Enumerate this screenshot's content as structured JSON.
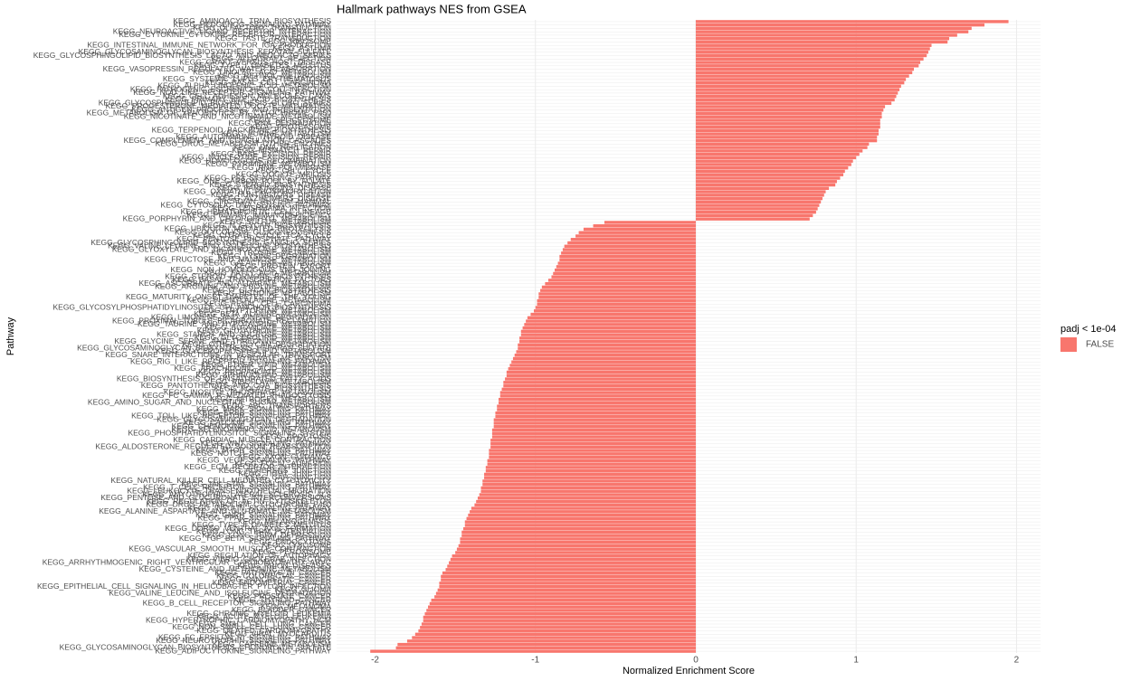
{
  "chart_data": {
    "type": "barh",
    "title": "Hallmark pathways NES from GSEA",
    "x_label": "Normalized Enrichment Score",
    "y_label": "Pathway",
    "legend_title": "padj < 1e-04",
    "legend_position": "right",
    "grid": true,
    "xlim": [
      -2.24,
      2.15
    ],
    "xticks": [
      -2,
      -1,
      0,
      1,
      2
    ],
    "categories": [
      "KEGG_AMINOACYL_TRNA_BIOSYNTHESIS",
      "KEGG_HEDGEHOG_SIGNALING_PATHWAY",
      "KEGG_OLFACTORY_TRANSDUCTION",
      "KEGG_NEUROACTIVE_LIGAND_RECEPTOR_INTERACTION",
      "KEGG_CYTOKINE_CYTOKINE_RECEPTOR_INTERACTION",
      "KEGG_TASTE_TRANSDUCTION",
      "KEGG_RIBOSOME",
      "KEGG_INTESTINAL_IMMUNE_NETWORK_FOR_IGA_PRODUCTION",
      "KEGG_ASTHMA",
      "KEGG_GLYCOSAMINOGLYCAN_BIOSYNTHESIS_KERATAN_SULFATE",
      "KEGG_GLYCOSPHINGOLIPID_BIOSYNTHESIS_LACTO_AND_NEOLACTO_SERIES",
      "KEGG_ALLOGRAFT_REJECTION",
      "KEGG_GRAFT_VERSUS_HOST_DISEASE",
      "KEGG_TYPE_I_DIABETES_MELLITUS",
      "KEGG_VASOPRESSIN_REGULATED_WATER_REABSORPTION",
      "KEGG_LINOLEIC_ACID_METABOLISM",
      "KEGG_RETINOL_METABOLISM",
      "KEGG_SYSTEMIC_LUPUS_ERYTHEMATOSUS",
      "KEGG_BASAL_CELL_CARCINOMA",
      "KEGG_ALPHA_LINOLENIC_ACID_METABOLISM",
      "KEGG_PATHOGENIC_ESCHERICHIA_COLI_INFECTION",
      "KEGG_NOD_LIKE_RECEPTOR_SIGNALING_PATHWAY",
      "KEGG_CELL_ADHESION_MOLECULES_CAMS",
      "KEGG_PRIMARY_BILE_ACID_BIOSYNTHESIS",
      "KEGG_GLYCOSPHINGOLIPID_BIOSYNTHESIS_GLOBO_SERIES",
      "KEGG_PROGESTERONE_MEDIATED_OOCYTE_MATURATION",
      "KEGG_ANTIGEN_PROCESSING_AND_PRESENTATION",
      "KEGG_METABOLISM_OF_XENOBIOTICS_BY_CYTOCHROME_P450",
      "KEGG_NICOTINATE_AND_NICOTINAMIDE_METABOLISM",
      "KEGG_SPLICEOSOME",
      "KEGG_RNA_DEGRADATION",
      "KEGG_PROTEASOME",
      "KEGG_TERPENOID_BACKBONE_BIOSYNTHESIS",
      "KEGG_PURINE_METABOLISM",
      "KEGG_AUTOIMMUNE_THYROID_DISEASE",
      "KEGG_COMPLEMENT_AND_COAGULATION_CASCADES",
      "KEGG_DRUG_METABOLISM_OTHER_ENZYMES",
      "KEGG_DNA_REPLICATION",
      "KEGG_MISMATCH_REPAIR",
      "KEGG_BASE_EXCISION_REPAIR",
      "KEGG_NUCLEOTIDE_EXCISION_REPAIR",
      "KEGG_HOMOLOGOUS_RECOMBINATION",
      "KEGG_PYRIMIDINE_METABOLISM",
      "KEGG_RNA_POLYMERASE",
      "KEGG_CELL_CYCLE",
      "KEGG_OOCYTE_MEIOSIS",
      "KEGG_P53_SIGNALING_PATHWAY",
      "KEGG_ONE_CARBON_POOL_BY_FOLATE",
      "KEGG_STEROID_BIOSYNTHESIS",
      "KEGG_PARKINSONS_DISEASE",
      "KEGG_OXIDATIVE_PHOSPHORYLATION",
      "KEGG_HUNTINGTONS_DISEASE",
      "KEGG_ALZHEIMERS_DISEASE",
      "KEGG_CIRCADIAN_RHYTHM_MAMMAL",
      "KEGG_CYTOSOLIC_DNA_SENSING_PATHWAY",
      "KEGG_LEISHMANIA_INFECTION",
      "KEGG_HEMATOPOIETIC_CELL_LINEAGE",
      "KEGG_PRIMARY_IMMUNODEFICIENCY",
      "KEGG_PORPHYRIN_AND_CHLOROPHYLL_METABOLISM",
      "KEGG_SULFUR_METABOLISM",
      "KEGG_N_GLYCAN_BIOSYNTHESIS",
      "KEGG_UBIQUITIN_MEDIATED_PROTEOLYSIS",
      "KEGG_GLYCOLYSIS_GLUCONEOGENESIS",
      "KEGG_CITRATE_CYCLE_TCA_CYCLE",
      "KEGG_PENTOSE_PHOSPHATE_PATHWAY",
      "KEGG_GLYCOSPHINGOLIPID_BIOSYNTHESIS_GANGLIO_SERIES",
      "KEGG_VALINE_LEUCINE_AND_ISOLEUCINE_BIOSYNTHESIS",
      "KEGG_GLYOXYLATE_AND_DICARBOXYLATE_METABOLISM",
      "KEGG_TYROSINE_METABOLISM",
      "KEGG_LYSINE_DEGRADATION",
      "KEGG_FRUCTOSE_AND_MANNOSE_METABOLISM",
      "KEGG_GALACTOSE_METABOLISM",
      "KEGG_PROTEIN_EXPORT",
      "KEGG_NON_HOMOLOGOUS_END_JOINING",
      "KEGG_FATTY_ACID_METABOLISM",
      "KEGG_STEROID_HORMONE_BIOSYNTHESIS",
      "KEGG_BASAL_TRANSCRIPTION_FACTORS",
      "KEGG_ASCORBATE_AND_ALDARATE_METABOLISM",
      "KEGG_ARGININE_AND_PROLINE_METABOLISM",
      "KEGG_O_GLYCAN_BIOSYNTHESIS",
      "KEGG_HISTIDINE_METABOLISM",
      "KEGG_MATURITY_ONSET_DIABETES_OF_THE_YOUNG",
      "KEGG_PHENYLALANINE_METABOLISM",
      "KEGG_RENAL_CELL_CARCINOMA",
      "KEGG_GLYCOSYLPHOSPHATIDYLINOSITOL_GPI_ANCHOR_BIOSYNTHESIS",
      "KEGG_TRYPTOPHAN_METABOLISM",
      "KEGG_BETA_ALANINE_METABOLISM",
      "KEGG_LIMONENE_AND_PINENE_DEGRADATION",
      "KEGG_PROXIMAL_TUBULE_BICARBONATE_RECLAMATION",
      "KEGG_TAURINE_AND_HYPOTAURINE_METABOLISM",
      "KEGG_BUTANOATE_METABOLISM",
      "KEGG_GLUTATHIONE_METABOLISM",
      "KEGG_STARCH_AND_SUCROSE_METABOLISM",
      "KEGG_GLYCEROLIPID_METABOLISM",
      "KEGG_GLYCINE_SERINE_AND_THREONINE_METABOLISM",
      "KEGG_OTHER_GLYCAN_DEGRADATION",
      "KEGG_GLYCOSAMINOGLYCAN_BIOSYNTHESIS_HEPARAN_SULFATE",
      "KEGG_GLYCEROPHOSPHOLIPID_METABOLISM",
      "KEGG_SNARE_INTERACTIONS_IN_VESICULAR_TRANSPORT",
      "KEGG_PYRUVATE_METABOLISM",
      "KEGG_RIG_I_LIKE_RECEPTOR_SIGNALING_PATHWAY",
      "KEGG_ETHER_LIPID_METABOLISM",
      "KEGG_ARACHIDONIC_ACID_METABOLISM",
      "KEGG_PROPANOATE_METABOLISM",
      "KEGG_SPHINGOLIPID_METABOLISM",
      "KEGG_BIOSYNTHESIS_OF_UNSATURATED_FATTY_ACIDS",
      "KEGG_RIBOFLAVIN_METABOLISM",
      "KEGG_PANTOTHENATE_AND_COA_BIOSYNTHESIS",
      "KEGG_FOLATE_BIOSYNTHESIS",
      "KEGG_INOSITOL_PHOSPHATE_METABOLISM",
      "KEGG_FC_GAMMA_R_MEDIATED_PHAGOCYTOSIS",
      "KEGG_NITROGEN_METABOLISM",
      "KEGG_AMINO_SUGAR_AND_NUCLEOTIDE_SUGAR_METABOLISM",
      "KEGG_ABC_TRANSPORTERS",
      "KEGG_MAPK_SIGNALING_PATHWAY",
      "KEGG_ERBB_SIGNALING_PATHWAY",
      "KEGG_TOLL_LIKE_RECEPTOR_SIGNALING_PATHWAY",
      "KEGG_GLYCOSAMINOGLYCAN_DEGRADATION",
      "KEGG_CALCIUM_SIGNALING_PATHWAY",
      "KEGG_CHEMOKINE_SIGNALING_PATHWAY",
      "KEGG_SELENOAMINO_ACID_METABOLISM",
      "KEGG_PHOSPHATIDYLINOSITOL_SIGNALING_SYSTEM",
      "KEGG_APOPTOSIS",
      "KEGG_CARDIAC_MUSCLE_CONTRACTION",
      "KEGG_WNT_SIGNALING_PATHWAY",
      "KEGG_ALDOSTERONE_REGULATED_SODIUM_REABSORPTION",
      "KEGG_MTOR_SIGNALING_PATHWAY",
      "KEGG_NOTCH_SIGNALING_PATHWAY",
      "KEGG_AXON_GUIDANCE",
      "KEGG_VEGF_SIGNALING_PATHWAY",
      "KEGG_FOCAL_ADHESION",
      "KEGG_ECM_RECEPTOR_INTERACTION",
      "KEGG_ADHERENS_JUNCTION",
      "KEGG_TIGHT_JUNCTION",
      "KEGG_GAP_JUNCTION",
      "KEGG_NATURAL_KILLER_CELL_MEDIATED_CYTOTOXICITY",
      "KEGG_JAK_STAT_SIGNALING_PATHWAY",
      "KEGG_T_CELL_RECEPTOR_SIGNALING_PATHWAY",
      "KEGG_LEUKOCYTE_TRANSENDOTHELIAL_MIGRATION",
      "KEGG_AMYOTROPHIC_LATERAL_SCLEROSIS_ALS",
      "KEGG_PENTOSE_AND_GLUCURONATE_INTERCONVERSIONS",
      "KEGG_REGULATION_OF_ACTIN_CYTOSKELETON",
      "KEGG_DRUG_METABOLISM_CYTOCHROME_P450",
      "KEGG_INSULIN_SIGNALING_PATHWAY",
      "KEGG_ALANINE_ASPARTATE_AND_GLUTAMATE_METABOLISM",
      "KEGG_GNRH_SIGNALING_PATHWAY",
      "KEGG_PPAR_SIGNALING_PATHWAY",
      "KEGG_MELANOGENESIS",
      "KEGG_TYPE_II_DIABETES_MELLITUS",
      "KEGG_DORSO_VENTRAL_AXIS_FORMATION",
      "KEGG_LONG_TERM_POTENTIATION",
      "KEGG_LONG_TERM_DEPRESSION",
      "KEGG_TGF_BETA_SIGNALING_PATHWAY",
      "KEGG_ENDOCYTOSIS",
      "KEGG_LYSOSOME",
      "KEGG_VASCULAR_SMOOTH_MUSCLE_CONTRACTION",
      "KEGG_PEROXISOME",
      "KEGG_REGULATION_OF_AUTOPHAGY",
      "KEGG_VIBRIO_CHOLERAE_INFECTION",
      "KEGG_ARRHYTHMOGENIC_RIGHT_VENTRICULAR_CARDIOMYOPATHY_ARVC",
      "KEGG_PRION_DISEASES",
      "KEGG_CYSTEINE_AND_METHIONINE_METABOLISM",
      "KEGG_PATHWAYS_IN_CANCER",
      "KEGG_COLORECTAL_CANCER",
      "KEGG_PANCREATIC_CANCER",
      "KEGG_ENDOMETRIAL_CANCER",
      "KEGG_EPITHELIAL_CELL_SIGNALING_IN_HELICOBACTER_PYLORI_INFECTION",
      "KEGG_GLIOMA",
      "KEGG_VALINE_LEUCINE_AND_ISOLEUCINE_DEGRADATION",
      "KEGG_PROSTATE_CANCER",
      "KEGG_THYROID_CANCER",
      "KEGG_B_CELL_RECEPTOR_SIGNALING_PATHWAY",
      "KEGG_MELANOMA",
      "KEGG_BLADDER_CANCER",
      "KEGG_CHRONIC_MYELOID_LEUKEMIA",
      "KEGG_ACUTE_MYELOID_LEUKEMIA",
      "KEGG_HYPERTROPHIC_CARDIOMYOPATHY_HCM",
      "KEGG_SMALL_CELL_LUNG_CANCER",
      "KEGG_NON_SMALL_CELL_LUNG_CANCER",
      "KEGG_DILATED_CARDIOMYOPATHY",
      "KEGG_VIRAL_MYOCARDITIS",
      "KEGG_FC_EPSILON_RI_SIGNALING_PATHWAY",
      "KEGG_NEUROTROPHIN_SIGNALING_PATHWAY",
      "KEGG_CAFFEINE_METABOLISM",
      "KEGG_GLYCOSAMINOGLYCAN_BIOSYNTHESIS_CHONDROITIN_SULFATE",
      "KEGG_ADIPOCYTOKINE_SIGNALING_PATHWAY"
    ],
    "series": [
      {
        "name": "FALSE",
        "color": "#F8766D",
        "values": [
          1.95,
          1.8,
          1.72,
          1.7,
          1.63,
          1.58,
          1.57,
          1.47,
          1.46,
          1.45,
          1.44,
          1.42,
          1.4,
          1.39,
          1.36,
          1.35,
          1.33,
          1.31,
          1.3,
          1.28,
          1.27,
          1.26,
          1.25,
          1.24,
          1.22,
          1.18,
          1.17,
          1.16,
          1.16,
          1.15,
          1.15,
          1.15,
          1.14,
          1.14,
          1.13,
          1.13,
          1.08,
          1.07,
          1.04,
          1.02,
          1.0,
          0.98,
          0.97,
          0.95,
          0.93,
          0.92,
          0.9,
          0.88,
          0.87,
          0.83,
          0.81,
          0.8,
          0.79,
          0.78,
          0.77,
          0.76,
          0.75,
          0.73,
          0.71,
          -0.57,
          -0.64,
          -0.7,
          -0.73,
          -0.75,
          -0.78,
          -0.8,
          -0.82,
          -0.83,
          -0.84,
          -0.85,
          -0.85,
          -0.86,
          -0.87,
          -0.88,
          -0.89,
          -0.9,
          -0.92,
          -0.94,
          -0.96,
          -0.97,
          -0.98,
          -0.98,
          -0.99,
          -0.99,
          -1.0,
          -1.01,
          -1.03,
          -1.05,
          -1.06,
          -1.07,
          -1.08,
          -1.09,
          -1.09,
          -1.1,
          -1.1,
          -1.11,
          -1.11,
          -1.12,
          -1.13,
          -1.14,
          -1.15,
          -1.16,
          -1.17,
          -1.18,
          -1.18,
          -1.19,
          -1.2,
          -1.2,
          -1.21,
          -1.22,
          -1.22,
          -1.23,
          -1.23,
          -1.24,
          -1.24,
          -1.25,
          -1.25,
          -1.26,
          -1.26,
          -1.26,
          -1.27,
          -1.27,
          -1.27,
          -1.28,
          -1.28,
          -1.28,
          -1.29,
          -1.29,
          -1.29,
          -1.3,
          -1.3,
          -1.31,
          -1.31,
          -1.32,
          -1.32,
          -1.33,
          -1.33,
          -1.34,
          -1.34,
          -1.35,
          -1.36,
          -1.37,
          -1.38,
          -1.4,
          -1.41,
          -1.42,
          -1.43,
          -1.44,
          -1.44,
          -1.45,
          -1.46,
          -1.46,
          -1.47,
          -1.47,
          -1.48,
          -1.49,
          -1.5,
          -1.52,
          -1.53,
          -1.54,
          -1.55,
          -1.56,
          -1.58,
          -1.59,
          -1.59,
          -1.6,
          -1.6,
          -1.61,
          -1.62,
          -1.63,
          -1.65,
          -1.66,
          -1.67,
          -1.68,
          -1.69,
          -1.7,
          -1.7,
          -1.71,
          -1.72,
          -1.73,
          -1.75,
          -1.77,
          -1.8,
          -1.86,
          -1.87,
          -2.03
        ]
      }
    ]
  }
}
